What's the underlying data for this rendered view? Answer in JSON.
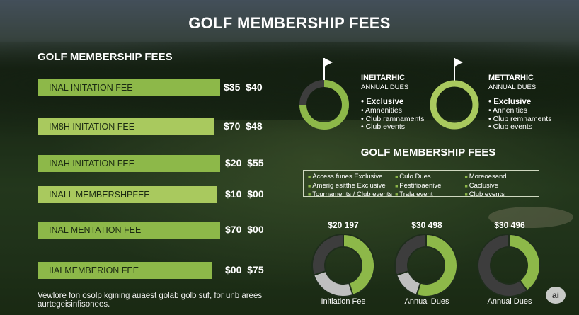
{
  "title": "GOLF MEMBERSHIP FEES",
  "left_panel": {
    "title": "GOLF MEMBERSHIP FEES",
    "rows": [
      {
        "label": "INAL INITATION FEE",
        "value": "$35  $40",
        "fill": 0.72
      },
      {
        "label": "IM8H INITATION FEE",
        "value": "$70  $48",
        "fill": 0.72
      },
      {
        "label": "INAH INITATION FEE",
        "value": "$20  $55",
        "fill": 0.72
      },
      {
        "label": "INALL MEMBERSHPFEE",
        "value": "$10  $00",
        "fill": 0.67
      },
      {
        "label": "INAL MENTATION FEE",
        "value": "$70  $00",
        "fill": 0.72
      },
      {
        "label": "IIALMEMBERION FEE",
        "value": "$00  $75",
        "fill": 0.7
      }
    ],
    "footnote": "Vewlore fon osolp kgining auaest golab golb suf, for unb arees aurtegeisinfisonees."
  },
  "tiers": [
    {
      "heading": "INEITARHIC",
      "subheading": "ANNUAL DUES",
      "exclusive": "• Exclusive",
      "items": [
        "Amnenities",
        "Club ramnaments",
        "Club events"
      ],
      "ring_color": "#8db849"
    },
    {
      "heading": "METTARHIC",
      "subheading": "ANNUAL DUES",
      "exclusive": "• Exclusive",
      "items": [
        "Annenities",
        "Club remnaments",
        "Club events"
      ],
      "ring_color": "#a9c95e"
    }
  ],
  "right_panel": {
    "title": "GOLF MEMBERSHIP FEES",
    "features": [
      [
        "Access funes Exclusive",
        "Amerig esitthe Exclusive",
        "Tournaments / Club events"
      ],
      [
        "Culo Dues",
        "Pestifioaenive",
        "Trala event"
      ],
      [
        "Moreoesand",
        "Caclusive",
        "Club events"
      ]
    ]
  },
  "donuts": [
    {
      "top_label": "$20 197",
      "bottom_label": "Initiation Fee",
      "segments": [
        0.45,
        0.25,
        0.3
      ],
      "colors": [
        "#8db849",
        "#bfbfbf",
        "#3d3d3d"
      ]
    },
    {
      "top_label": "$30 498",
      "bottom_label": "Annual Dues",
      "segments": [
        0.55,
        0.15,
        0.3
      ],
      "colors": [
        "#8db849",
        "#bfbfbf",
        "#3d3d3d"
      ]
    },
    {
      "top_label": "$30 496",
      "bottom_label": "Annual Dues",
      "segments": [
        0.4,
        0.6
      ],
      "colors": [
        "#8db849",
        "#3d3d3d"
      ]
    }
  ],
  "badge": "ai"
}
